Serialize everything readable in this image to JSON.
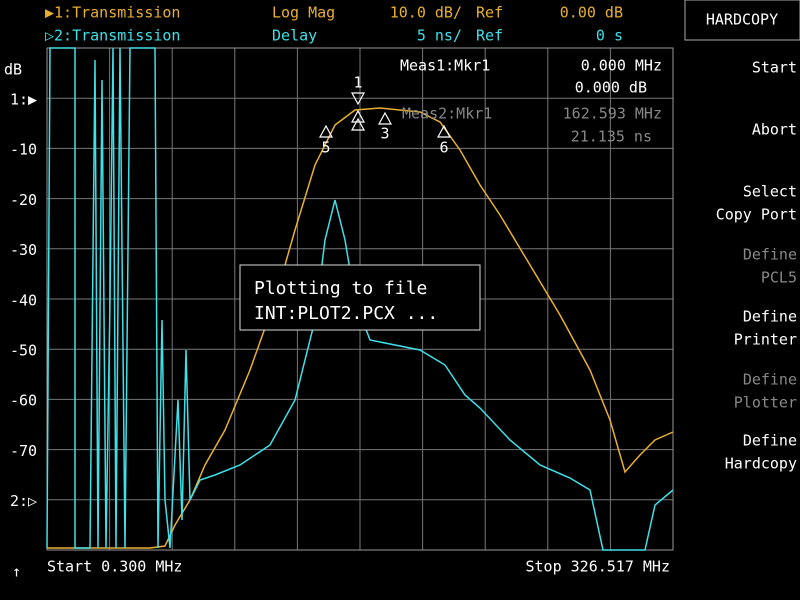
{
  "header": {
    "trace1": {
      "name": "▶1:Transmission",
      "format": "Log Mag",
      "scale": "10.0 dB/",
      "ref_label": "Ref",
      "ref": "0.00 dB"
    },
    "trace2": {
      "name": "▷2:Transmission",
      "format": "Delay",
      "scale": "5 ns/",
      "ref_label": "Ref",
      "ref": "0 s"
    }
  },
  "softkeys": {
    "title": "HARDCOPY",
    "keys": [
      [
        "Start"
      ],
      [
        "Abort"
      ],
      [
        "Select",
        "Copy Port"
      ],
      [
        "Define",
        "PCL5"
      ],
      [
        "Define",
        "Printer"
      ],
      [
        "Define",
        "Plotter"
      ],
      [
        "Define",
        "Hardcopy"
      ]
    ]
  },
  "axis": {
    "unit": "dB",
    "labels": [
      "1:▶",
      "-10",
      "-20",
      "-30",
      "-40",
      "-50",
      "-60",
      "-70",
      "2:▷"
    ]
  },
  "readout": {
    "meas1": {
      "label": "Meas1:Mkr1",
      "freq": "0.000 MHz",
      "value": "0.000 dB"
    },
    "meas2": {
      "label": "Meas2:Mkr1",
      "freq": "162.593 MHz",
      "value": "21.135 ns"
    }
  },
  "markers": [
    "1",
    "3",
    "5",
    "6"
  ],
  "footer": {
    "start": "Start 0.300 MHz",
    "stop": "Stop 326.517 MHz"
  },
  "dialog": {
    "lines": [
      "Plotting to file",
      "INT:PLOT2.PCX ..."
    ]
  }
}
